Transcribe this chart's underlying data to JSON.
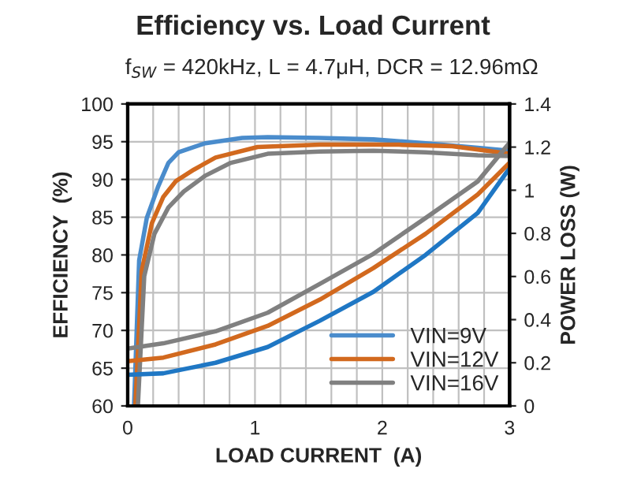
{
  "chart_data": {
    "type": "line",
    "title": "Efficiency vs. Load Current",
    "subtitle": "f$_{SW}$ = 420kHz, L = 4.7μH, DCR = 12.96mΩ",
    "xlabel": "LOAD CURRENT  (A)",
    "ylabel": "EFFICIENCY  (%)",
    "y2label": "POWER LOSS (W)",
    "xlim": [
      0,
      3
    ],
    "xticks": [
      0,
      {
        "value": 0.2,
        "label": null
      },
      {
        "value": 0.4,
        "label": null
      },
      {
        "value": 0.6,
        "label": null
      },
      {
        "value": 0.8,
        "label": null
      },
      1,
      {
        "value": 1.2,
        "label": null
      },
      {
        "value": 1.4,
        "label": null
      },
      {
        "value": 1.6,
        "label": null
      },
      {
        "value": 1.8,
        "label": null
      },
      2,
      {
        "value": 2.2,
        "label": null
      },
      {
        "value": 2.4,
        "label": null
      },
      {
        "value": 2.6,
        "label": null
      },
      {
        "value": 2.8,
        "label": null
      },
      3
    ],
    "ylim": [
      60,
      100
    ],
    "yticks": [
      60,
      65,
      70,
      75,
      80,
      85,
      90,
      95,
      100
    ],
    "y2lim": [
      0,
      1.4
    ],
    "y2ticks": [
      0,
      {
        "value": 0.2,
        "label": "0.2"
      },
      {
        "value": 0.4,
        "label": "0.4"
      },
      {
        "value": 0.6,
        "label": "0.6"
      },
      {
        "value": 0.8,
        "label": "0.8"
      },
      1,
      {
        "value": 1.2,
        "label": "1.2"
      },
      {
        "value": 1.4,
        "label": "1.4"
      }
    ],
    "grid": true,
    "legend": "bottom right",
    "line_style": "solid",
    "marker": "none",
    "series": [
      {
        "name": "VIN=9V",
        "color": "#4a8ccc",
        "x": [
          0.05,
          0.09,
          0.15,
          0.24,
          0.32,
          0.4,
          0.61,
          0.9,
          1.1,
          1.51,
          1.93,
          2.34,
          2.75,
          3.0
        ],
        "values": [
          60,
          79.3,
          84.9,
          89.1,
          92.2,
          93.6,
          94.8,
          95.5,
          95.6,
          95.5,
          95.3,
          94.8,
          94.2,
          93.8
        ]
      },
      {
        "name": "VIN=12V",
        "color": "#d2691e",
        "x": [
          0.06,
          0.11,
          0.19,
          0.28,
          0.38,
          0.52,
          0.69,
          1.02,
          1.51,
          2.13,
          2.55,
          3.0
        ],
        "values": [
          60,
          77.9,
          84.2,
          87.7,
          89.8,
          91.3,
          92.9,
          94.3,
          94.6,
          94.6,
          94.4,
          93.4
        ]
      },
      {
        "name": "VIN=16V",
        "color": "#808080",
        "x": [
          0.08,
          0.13,
          0.21,
          0.32,
          0.44,
          0.61,
          0.81,
          1.1,
          1.51,
          1.93,
          2.34,
          2.75,
          3.0
        ],
        "values": [
          60,
          77.2,
          82.8,
          86.3,
          88.4,
          90.5,
          92.2,
          93.4,
          93.7,
          93.8,
          93.6,
          93.2,
          93.1
        ]
      },
      {
        "color": "#1f77c4",
        "axis": "y2",
        "x": [
          0,
          0.28,
          0.69,
          1.1,
          1.51,
          1.93,
          2.34,
          2.75,
          3.0
        ],
        "values": [
          0.144,
          0.151,
          0.2,
          0.273,
          0.395,
          0.529,
          0.7,
          0.895,
          1.102
        ]
      },
      {
        "color": "#d2691e",
        "axis": "y2",
        "x": [
          0,
          0.28,
          0.69,
          1.1,
          1.51,
          1.93,
          2.34,
          2.75,
          3.0
        ],
        "values": [
          0.207,
          0.224,
          0.285,
          0.371,
          0.493,
          0.639,
          0.798,
          0.98,
          1.127
        ]
      },
      {
        "color": "#808080",
        "axis": "y2",
        "x": [
          0,
          0.28,
          0.69,
          1.1,
          1.51,
          1.93,
          2.34,
          2.75,
          3.0
        ],
        "values": [
          0.266,
          0.29,
          0.346,
          0.432,
          0.566,
          0.705,
          0.871,
          1.041,
          1.22
        ]
      }
    ]
  }
}
